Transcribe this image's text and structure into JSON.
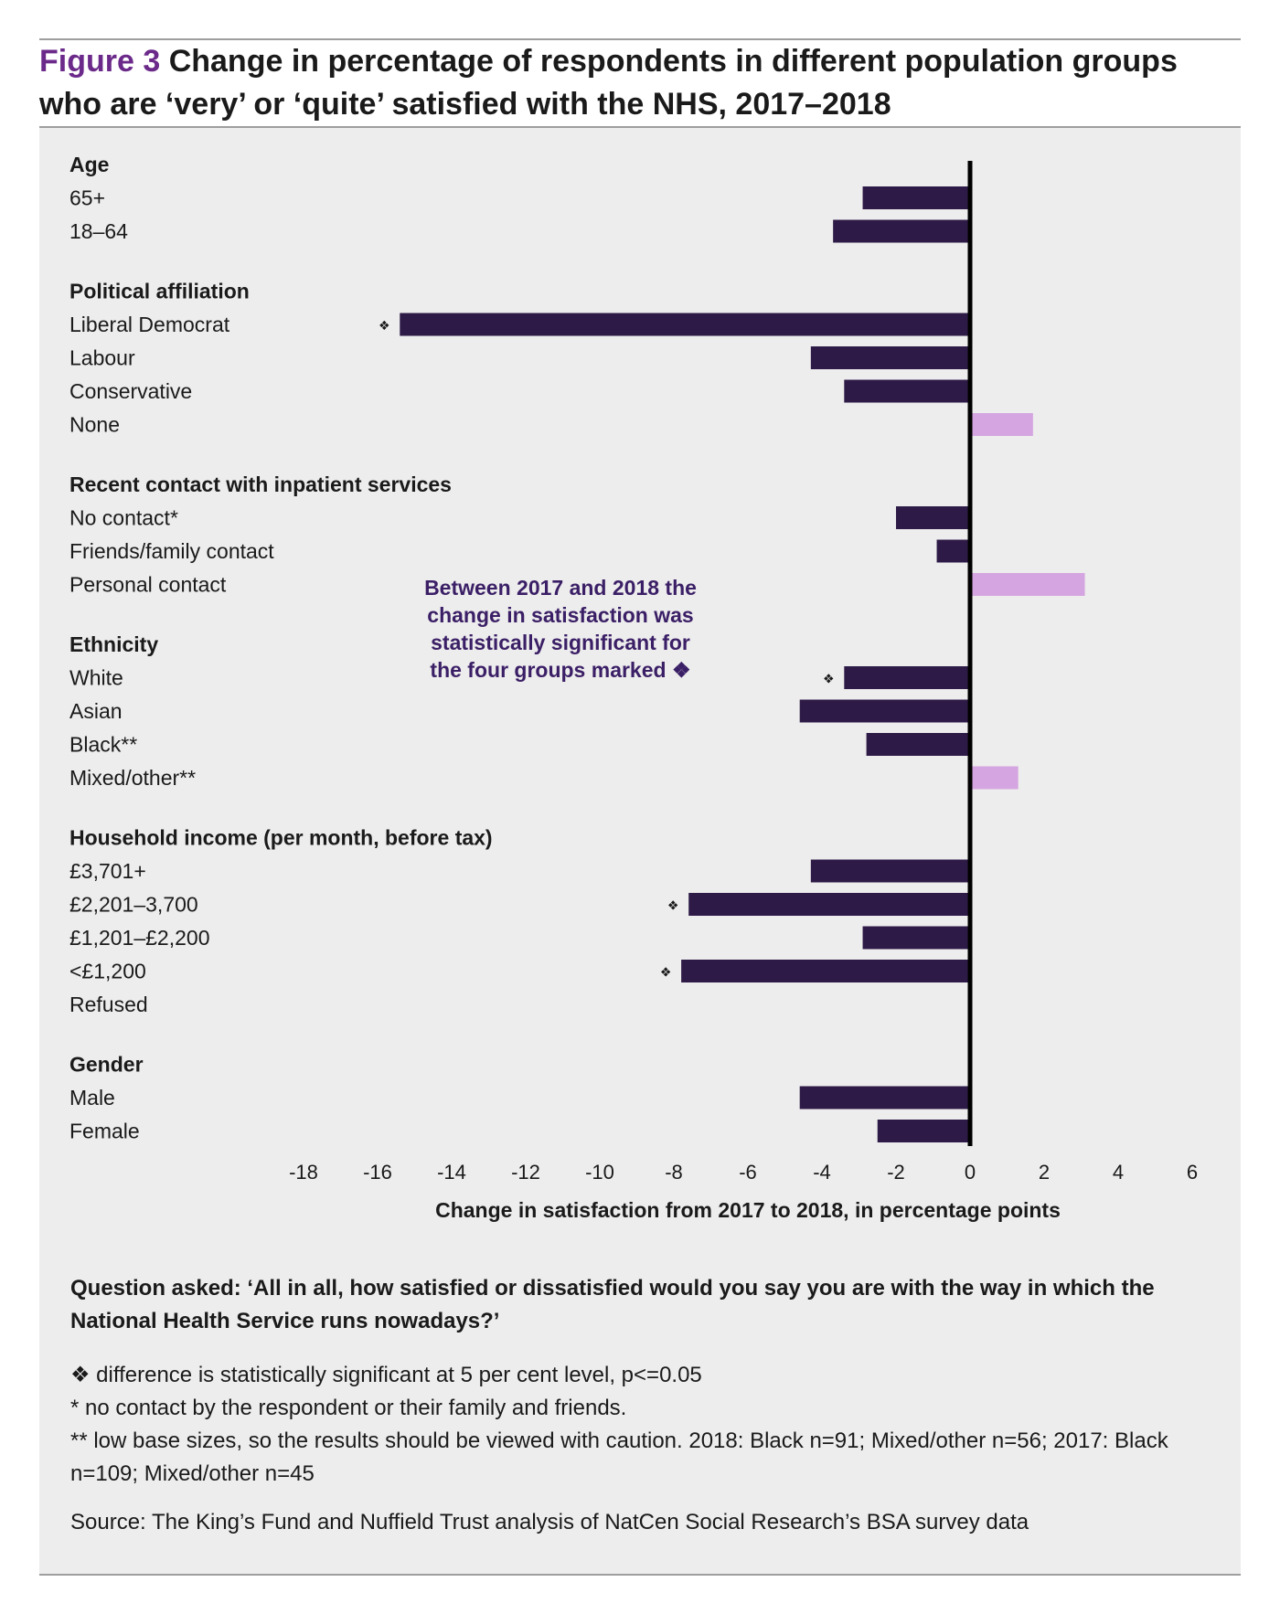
{
  "figure": {
    "label": "Figure 3",
    "title": "Change in percentage of respondents in different population groups who are ‘very’ or ‘quite’ satisfied with the NHS, 2017–2018"
  },
  "colors": {
    "negative": "#2e1a47",
    "positive": "#d4a5e0",
    "axis": "#000000",
    "accent": "#6b2a8a"
  },
  "sig_marker": "❖",
  "callout": "Between 2017 and 2018 the change in satisfaction was statistically significant for the four groups marked ❖",
  "question": "Question asked: ‘All in all, how satisfied or dissatisfied would you say you are with the way in which the National Health Service runs nowadays?’",
  "notes": [
    "❖ difference is statistically significant at 5 per cent level, p<=0.05",
    "* no contact by the respondent or their family and friends.",
    "** low base sizes, so the results should be viewed with caution. 2018: Black n=91; Mixed/other n=56; 2017: Black n=109; Mixed/other n=45"
  ],
  "source": "Source: The King’s Fund and Nuffield Trust analysis of NatCen Social Research’s BSA survey data",
  "chart_data": {
    "type": "bar",
    "orientation": "horizontal",
    "xlabel": "Change in satisfaction from 2017 to 2018, in percentage points",
    "xlim": [
      -18,
      6
    ],
    "xticks": [
      -18,
      -16,
      -14,
      -12,
      -10,
      -8,
      -6,
      -4,
      -2,
      0,
      2,
      4,
      6
    ],
    "groups": [
      {
        "name": "Age",
        "items": [
          {
            "label": "65+",
            "value": -2.9,
            "significant": false
          },
          {
            "label": "18–64",
            "value": -3.7,
            "significant": false
          }
        ]
      },
      {
        "name": "Political affiliation",
        "items": [
          {
            "label": "Liberal Democrat",
            "value": -15.4,
            "significant": true
          },
          {
            "label": "Labour",
            "value": -4.3,
            "significant": false
          },
          {
            "label": "Conservative",
            "value": -3.4,
            "significant": false
          },
          {
            "label": "None",
            "value": 1.7,
            "significant": false
          }
        ]
      },
      {
        "name": "Recent contact with inpatient services",
        "items": [
          {
            "label": "No contact*",
            "value": -2.0,
            "significant": false
          },
          {
            "label": "Friends/family contact",
            "value": -0.9,
            "significant": false
          },
          {
            "label": "Personal contact",
            "value": 3.1,
            "significant": false
          }
        ]
      },
      {
        "name": "Ethnicity",
        "items": [
          {
            "label": "White",
            "value": -3.4,
            "significant": true
          },
          {
            "label": "Asian",
            "value": -4.6,
            "significant": false
          },
          {
            "label": "Black**",
            "value": -2.8,
            "significant": false
          },
          {
            "label": "Mixed/other**",
            "value": 1.3,
            "significant": false
          }
        ]
      },
      {
        "name": "Household income (per month, before tax)",
        "items": [
          {
            "label": "£3,701+",
            "value": -4.3,
            "significant": false
          },
          {
            "label": "£2,201–3,700",
            "value": -7.6,
            "significant": true
          },
          {
            "label": "£1,201–£2,200",
            "value": -2.9,
            "significant": false
          },
          {
            "label": "<£1,200",
            "value": -7.8,
            "significant": true
          },
          {
            "label": "Refused",
            "value": 0,
            "significant": false
          }
        ]
      },
      {
        "name": "Gender",
        "items": [
          {
            "label": "Male",
            "value": -4.6,
            "significant": false
          },
          {
            "label": "Female",
            "value": -2.5,
            "significant": false
          }
        ]
      }
    ]
  }
}
